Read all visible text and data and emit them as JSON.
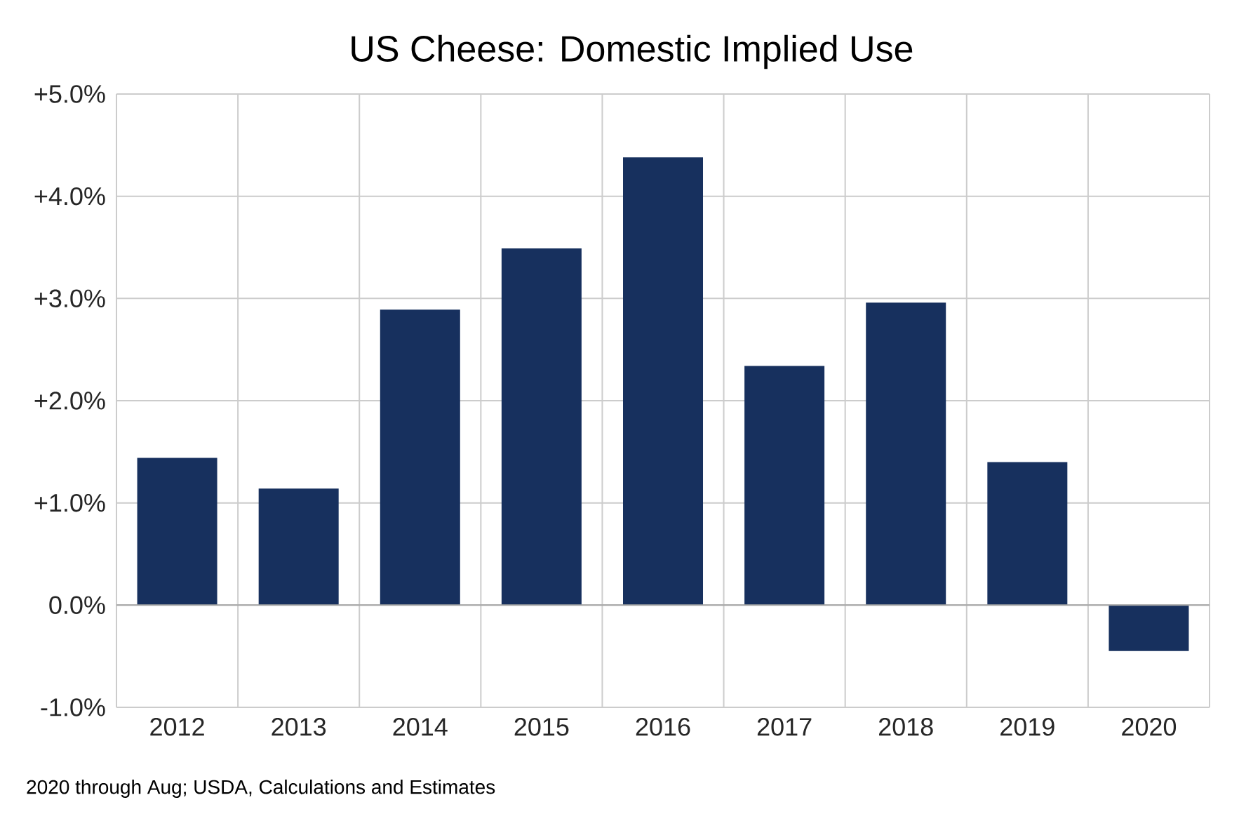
{
  "chart_data": {
    "type": "bar",
    "title": "US Cheese: Domestic Implied Use",
    "categories": [
      "2012",
      "2013",
      "2014",
      "2015",
      "2016",
      "2017",
      "2018",
      "2019",
      "2020"
    ],
    "values": [
      1.44,
      1.14,
      2.89,
      3.49,
      4.38,
      2.34,
      2.96,
      1.4,
      -0.45
    ],
    "color": "#17305e",
    "ylim": [
      -1.0,
      5.0
    ],
    "yticks": [
      {
        "value": -1.0,
        "label": "-1.0%"
      },
      {
        "value": 0.0,
        "label": "0.0%"
      },
      {
        "value": 1.0,
        "label": "+1.0%"
      },
      {
        "value": 2.0,
        "label": "+2.0%"
      },
      {
        "value": 3.0,
        "label": "+3.0%"
      },
      {
        "value": 4.0,
        "label": "+4.0%"
      },
      {
        "value": 5.0,
        "label": "+5.0%"
      }
    ],
    "grid": true,
    "annotations": [
      "2020 through Aug; USDA, Calculations and Estimates"
    ]
  }
}
